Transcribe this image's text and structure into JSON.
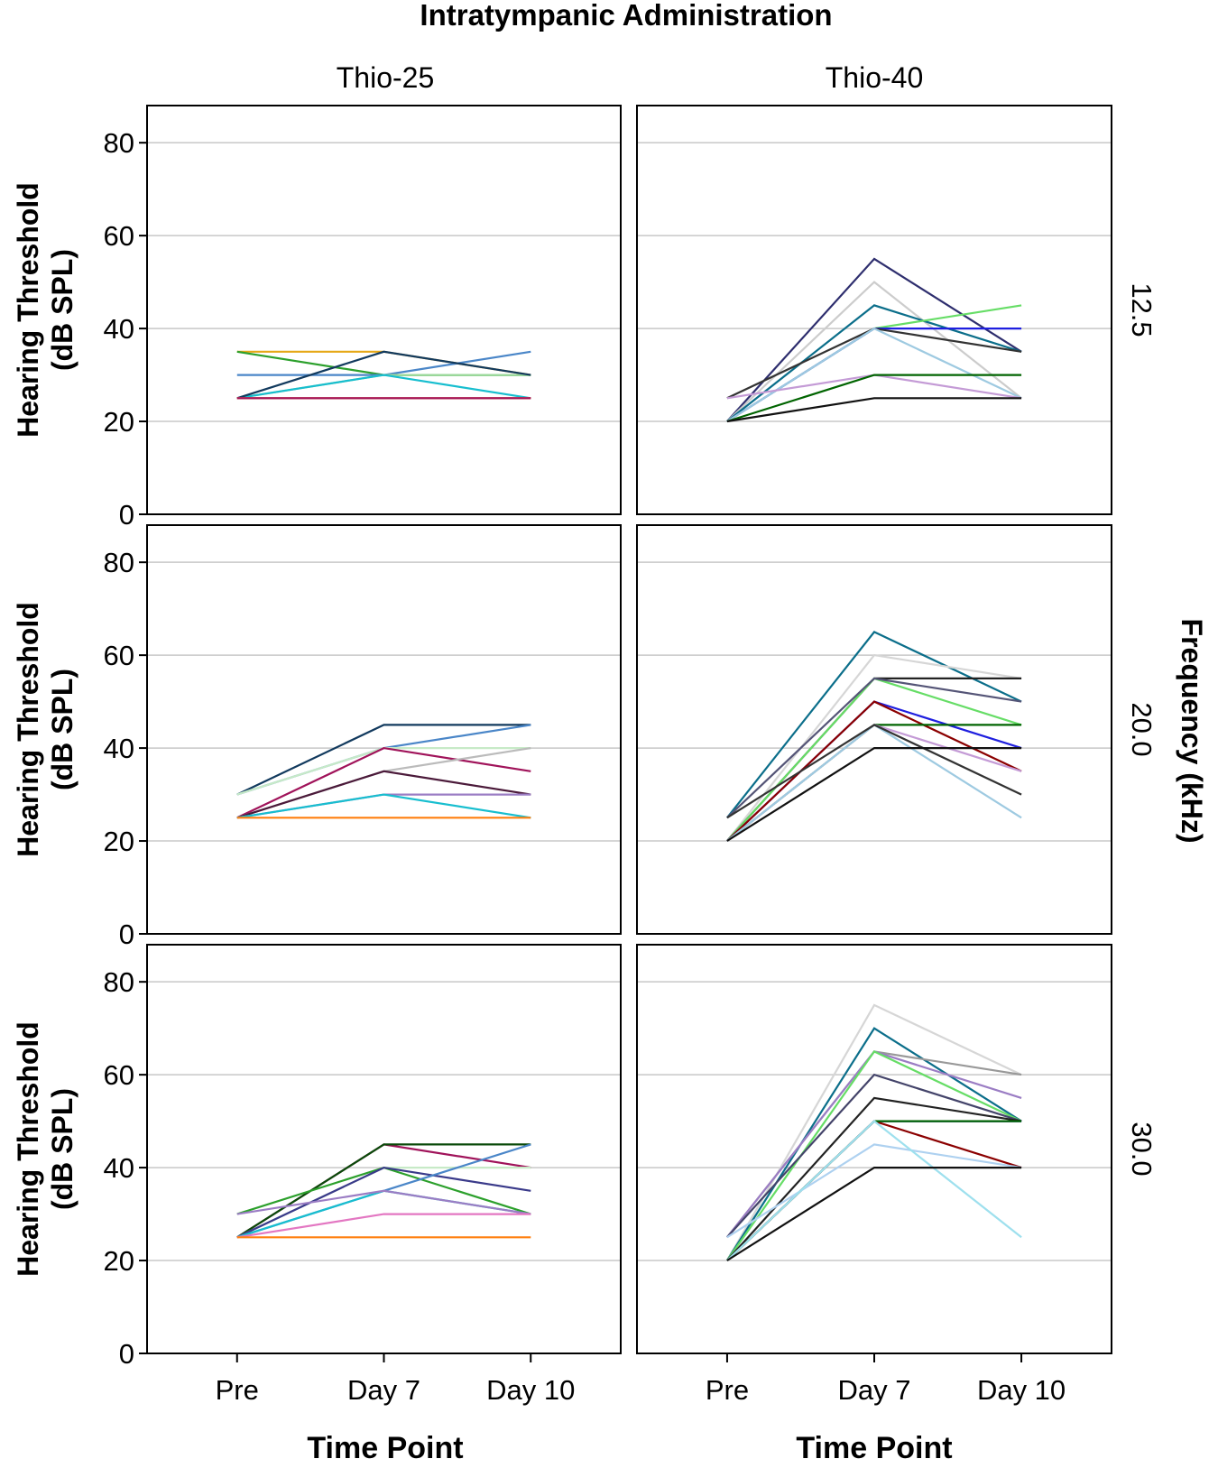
{
  "chart_data": {
    "type": "line",
    "title": "Intratympanic Administration",
    "xlabel": "Time Point",
    "ylabel": "Hearing Threshold (dB SPL)",
    "ylabel_lines": [
      "Hearing Threshold",
      "(dB SPL)"
    ],
    "facet_row_title": "Frequency (kHz)",
    "columns": [
      "Thio-25",
      "Thio-40"
    ],
    "rows": [
      "12.5",
      "20.0",
      "30.0"
    ],
    "categories": [
      "Pre",
      "Day 7",
      "Day 10"
    ],
    "ylim": [
      0,
      88
    ],
    "yticks": [
      0,
      20,
      40,
      60,
      80
    ],
    "grid": true,
    "panels": [
      {
        "column": "Thio-25",
        "frequency": "12.5",
        "series": [
          {
            "color": "#e6a817",
            "values": [
              35,
              35,
              30
            ]
          },
          {
            "color": "#2ca02c",
            "values": [
              35,
              30,
              30
            ]
          },
          {
            "color": "#4a86c8",
            "values": [
              30,
              30,
              35
            ]
          },
          {
            "color": "#9bd89b",
            "values": [
              25,
              30,
              30
            ]
          },
          {
            "color": "#17becf",
            "values": [
              25,
              30,
              25
            ]
          },
          {
            "color": "#123a5e",
            "values": [
              25,
              35,
              30
            ]
          },
          {
            "color": "#e377c2",
            "values": [
              25,
              25,
              25
            ]
          },
          {
            "color": "#ff7f0e",
            "values": [
              25,
              25,
              25
            ]
          },
          {
            "color": "#a0135a",
            "values": [
              25,
              25,
              25
            ]
          }
        ]
      },
      {
        "column": "Thio-40",
        "frequency": "12.5",
        "series": [
          {
            "color": "#2e2e6e",
            "values": [
              20,
              55,
              35
            ]
          },
          {
            "color": "#cccccc",
            "values": [
              20,
              50,
              25
            ]
          },
          {
            "color": "#0b6e8a",
            "values": [
              20,
              45,
              35
            ]
          },
          {
            "color": "#66dd66",
            "values": [
              20,
              40,
              45
            ]
          },
          {
            "color": "#1f1fdf",
            "values": [
              20,
              40,
              40
            ]
          },
          {
            "color": "#333333",
            "values": [
              25,
              40,
              35
            ]
          },
          {
            "color": "#9ecae1",
            "values": [
              20,
              40,
              25
            ]
          },
          {
            "color": "#c49bd6",
            "values": [
              25,
              30,
              25
            ]
          },
          {
            "color": "#006400",
            "values": [
              20,
              30,
              30
            ]
          },
          {
            "color": "#111111",
            "values": [
              20,
              25,
              25
            ]
          }
        ]
      },
      {
        "column": "Thio-25",
        "frequency": "20.0",
        "series": [
          {
            "color": "#123a5e",
            "values": [
              30,
              45,
              45
            ]
          },
          {
            "color": "#4a86c8",
            "values": [
              30,
              40,
              45
            ]
          },
          {
            "color": "#c7eac7",
            "values": [
              30,
              40,
              40
            ]
          },
          {
            "color": "#a0135a",
            "values": [
              25,
              40,
              35
            ]
          },
          {
            "color": "#bbbbbb",
            "values": [
              25,
              35,
              40
            ]
          },
          {
            "color": "#4b1a3a",
            "values": [
              25,
              35,
              30
            ]
          },
          {
            "color": "#9b7dc4",
            "values": [
              25,
              30,
              30
            ]
          },
          {
            "color": "#17becf",
            "values": [
              25,
              30,
              25
            ]
          },
          {
            "color": "#ff7f0e",
            "values": [
              25,
              25,
              25
            ]
          }
        ]
      },
      {
        "column": "Thio-40",
        "frequency": "20.0",
        "series": [
          {
            "color": "#0b6e8a",
            "values": [
              25,
              65,
              50
            ]
          },
          {
            "color": "#d6d6d6",
            "values": [
              20,
              60,
              55
            ]
          },
          {
            "color": "#222222",
            "values": [
              20,
              55,
              55
            ]
          },
          {
            "color": "#66dd66",
            "values": [
              20,
              55,
              45
            ]
          },
          {
            "color": "#555577",
            "values": [
              25,
              55,
              50
            ]
          },
          {
            "color": "#1f1fdf",
            "values": [
              20,
              50,
              40
            ]
          },
          {
            "color": "#8b0000",
            "values": [
              20,
              50,
              35
            ]
          },
          {
            "color": "#006400",
            "values": [
              20,
              45,
              45
            ]
          },
          {
            "color": "#c49bd6",
            "values": [
              20,
              45,
              35
            ]
          },
          {
            "color": "#9ecae1",
            "values": [
              20,
              45,
              25
            ]
          },
          {
            "color": "#333333",
            "values": [
              25,
              45,
              30
            ]
          },
          {
            "color": "#111111",
            "values": [
              20,
              40,
              40
            ]
          }
        ]
      },
      {
        "column": "Thio-25",
        "frequency": "30.0",
        "series": [
          {
            "color": "#a0135a",
            "values": [
              25,
              45,
              40
            ]
          },
          {
            "color": "#0a4a0a",
            "values": [
              25,
              45,
              45
            ]
          },
          {
            "color": "#c7eac7",
            "values": [
              25,
              40,
              40
            ]
          },
          {
            "color": "#2ca02c",
            "values": [
              30,
              40,
              30
            ]
          },
          {
            "color": "#3a3a8a",
            "values": [
              25,
              40,
              35
            ]
          },
          {
            "color": "#4a86c8",
            "values": [
              25,
              35,
              45
            ]
          },
          {
            "color": "#17becf",
            "values": [
              25,
              35,
              30
            ]
          },
          {
            "color": "#9b7dc4",
            "values": [
              30,
              35,
              30
            ]
          },
          {
            "color": "#e377c2",
            "values": [
              25,
              30,
              30
            ]
          },
          {
            "color": "#ff7f0e",
            "values": [
              25,
              25,
              25
            ]
          }
        ]
      },
      {
        "column": "Thio-40",
        "frequency": "30.0",
        "series": [
          {
            "color": "#d6d6d6",
            "values": [
              20,
              75,
              60
            ]
          },
          {
            "color": "#0b6e8a",
            "values": [
              20,
              70,
              50
            ]
          },
          {
            "color": "#999999",
            "values": [
              25,
              65,
              60
            ]
          },
          {
            "color": "#9b7dc4",
            "values": [
              25,
              65,
              55
            ]
          },
          {
            "color": "#66dd66",
            "values": [
              20,
              65,
              50
            ]
          },
          {
            "color": "#44446a",
            "values": [
              25,
              60,
              50
            ]
          },
          {
            "color": "#222222",
            "values": [
              20,
              55,
              50
            ]
          },
          {
            "color": "#1f1fdf",
            "values": [
              20,
              50,
              50
            ]
          },
          {
            "color": "#8b0000",
            "values": [
              20,
              50,
              40
            ]
          },
          {
            "color": "#006400",
            "values": [
              20,
              50,
              50
            ]
          },
          {
            "color": "#aed1f0",
            "values": [
              25,
              45,
              40
            ]
          },
          {
            "color": "#9ee0ee",
            "values": [
              20,
              50,
              25
            ]
          },
          {
            "color": "#111111",
            "values": [
              20,
              40,
              40
            ]
          }
        ]
      }
    ]
  }
}
